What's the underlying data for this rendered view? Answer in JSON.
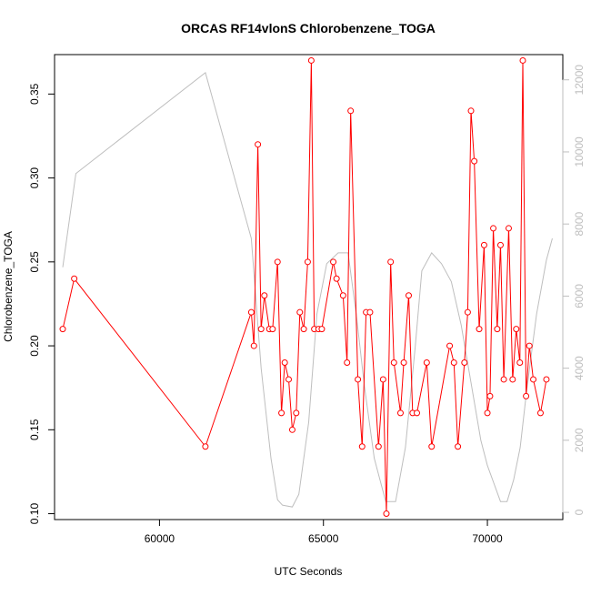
{
  "chart_data": {
    "type": "line",
    "title": "ORCAS RF14vlonS Chlorobenzene_TOGA",
    "xlabel": "UTC Seconds",
    "ylabel": "Chlorobenzene_TOGA",
    "xlim": [
      56800,
      72300
    ],
    "ylim": [
      0.0965,
      0.3735
    ],
    "y2lim": [
      -200,
      12700
    ],
    "x_ticks": [
      60000,
      65000,
      70000
    ],
    "x_tick_labels": [
      "60000",
      "65000",
      "70000"
    ],
    "y_ticks": [
      0.1,
      0.15,
      0.2,
      0.25,
      0.3,
      0.35
    ],
    "y_tick_labels": [
      "0.10",
      "0.15",
      "0.20",
      "0.25",
      "0.30",
      "0.35"
    ],
    "y2_ticks": [
      0,
      2000,
      4000,
      6000,
      8000,
      10000,
      12000
    ],
    "y2_tick_labels": [
      "0",
      "2000",
      "4000",
      "6000",
      "8000",
      "10000",
      "12000"
    ],
    "grid": false,
    "series": [
      {
        "color": "#ff0000",
        "style": "line+open-circle",
        "axis": "left",
        "x": [
          57050,
          57400,
          61400,
          62800,
          62880,
          63000,
          63100,
          63200,
          63350,
          63450,
          63600,
          63720,
          63820,
          63940,
          64050,
          64170,
          64280,
          64400,
          64520,
          64630,
          64720,
          64850,
          64950,
          65300,
          65400,
          65600,
          65720,
          65830,
          66050,
          66180,
          66300,
          66420,
          66680,
          66820,
          66920,
          67050,
          67150,
          67350,
          67450,
          67600,
          67720,
          67850,
          68150,
          68300,
          68850,
          68980,
          69100,
          69300,
          69400,
          69500,
          69600,
          69750,
          69900,
          70000,
          70080,
          70180,
          70300,
          70400,
          70500,
          70650,
          70770,
          70880,
          70990,
          71080,
          71180,
          71280,
          71400,
          71620,
          71800
        ],
        "values": [
          0.21,
          0.24,
          0.14,
          0.22,
          0.2,
          0.32,
          0.21,
          0.23,
          0.21,
          0.21,
          0.25,
          0.16,
          0.19,
          0.18,
          0.15,
          0.16,
          0.22,
          0.21,
          0.25,
          0.37,
          0.21,
          0.21,
          0.21,
          0.25,
          0.24,
          0.23,
          0.19,
          0.34,
          0.18,
          0.14,
          0.22,
          0.22,
          0.14,
          0.18,
          0.1,
          0.25,
          0.19,
          0.16,
          0.19,
          0.23,
          0.16,
          0.16,
          0.19,
          0.14,
          0.2,
          0.19,
          0.14,
          0.19,
          0.22,
          0.34,
          0.31,
          0.21,
          0.26,
          0.16,
          0.17,
          0.27,
          0.21,
          0.26,
          0.18,
          0.27,
          0.18,
          0.21,
          0.19,
          0.37,
          0.17,
          0.2,
          0.18,
          0.16,
          0.18
        ]
      },
      {
        "color": "#bebebe",
        "style": "line",
        "axis": "right",
        "x": [
          57050,
          57450,
          61400,
          62800,
          63100,
          63400,
          63600,
          63750,
          64050,
          64250,
          64550,
          64800,
          65100,
          65450,
          65750,
          66000,
          66250,
          66550,
          66900,
          67200,
          67500,
          67800,
          68000,
          68300,
          68600,
          68900,
          69200,
          69500,
          69800,
          70000,
          70200,
          70400,
          70600,
          70800,
          71000,
          71200,
          71500,
          71800,
          71980
        ],
        "values": [
          6800,
          9400,
          12200,
          7600,
          4000,
          1500,
          350,
          200,
          150,
          500,
          2500,
          5500,
          6900,
          7200,
          7200,
          5500,
          3500,
          1500,
          300,
          300,
          1800,
          4600,
          6700,
          7200,
          6900,
          6400,
          5200,
          3600,
          2000,
          1300,
          800,
          300,
          300,
          900,
          1800,
          3400,
          5500,
          7000,
          7600
        ]
      }
    ]
  }
}
